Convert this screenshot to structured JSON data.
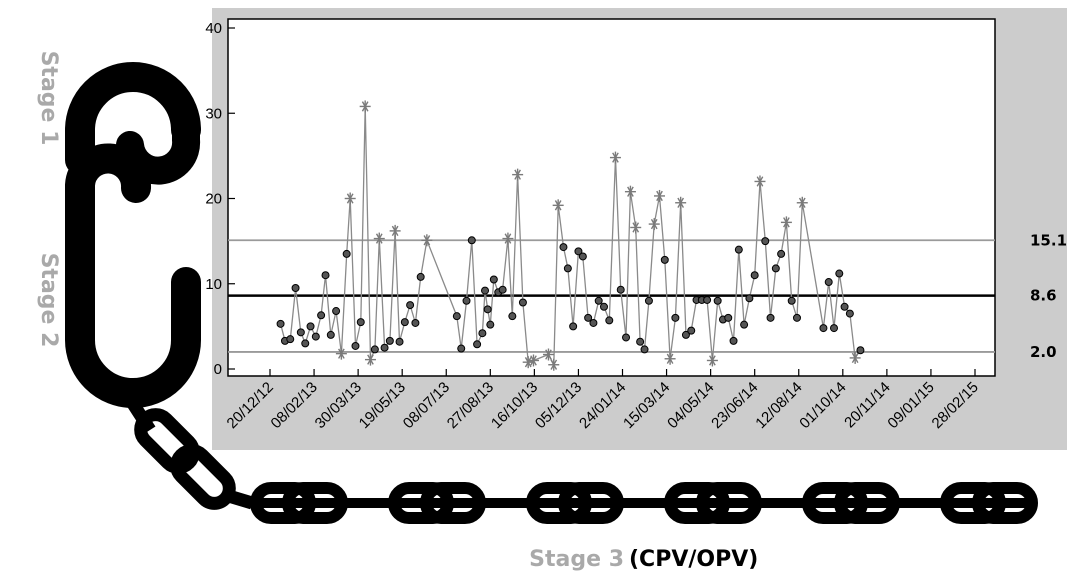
{
  "stages": {
    "stage1": "Stage 1",
    "stage2": "Stage 2",
    "stage3": "Stage 3",
    "stage3_paren": "(CPV/OPV)"
  },
  "colors": {
    "panel": "#cccccc",
    "plot_bg": "#ffffff",
    "series_line": "#8a8a8a",
    "marker_fill": "#555555",
    "mean_line": "#000000",
    "limit_line": "#9a9a9a",
    "chain": "#000000",
    "stage_label": "#a9a9a9"
  },
  "chart_data": {
    "type": "line",
    "title": "",
    "xlabel": "",
    "ylabel": "",
    "ylim": [
      0,
      40
    ],
    "yticks": [
      0,
      10,
      20,
      30,
      40
    ],
    "x_range": [
      "2012-12-20",
      "2015-03-20"
    ],
    "x_tick_labels": [
      "20/12/12",
      "08/02/13",
      "30/03/13",
      "19/05/13",
      "08/07/13",
      "27/08/13",
      "16/10/13",
      "05/12/13",
      "24/01/14",
      "15/03/14",
      "04/05/14",
      "23/06/14",
      "12/08/14",
      "01/10/14",
      "20/11/14",
      "09/01/15",
      "28/02/15"
    ],
    "x_tick_dates": [
      "2012-12-20",
      "2013-02-08",
      "2013-03-30",
      "2013-05-19",
      "2013-07-08",
      "2013-08-27",
      "2013-10-16",
      "2013-12-05",
      "2014-01-24",
      "2014-03-15",
      "2014-05-04",
      "2014-06-23",
      "2014-08-12",
      "2014-10-01",
      "2014-11-20",
      "2015-01-09",
      "2015-02-28"
    ],
    "reference_lines": [
      {
        "value": 15.1,
        "label": "15.1",
        "kind": "upper"
      },
      {
        "value": 8.6,
        "label": "8.6",
        "kind": "mean"
      },
      {
        "value": 2.0,
        "label": "2.0",
        "kind": "lower"
      }
    ],
    "grid": false,
    "legend": "none",
    "series": [
      {
        "points": [
          {
            "x": "2013-01-01",
            "y": 5.3,
            "m": "o"
          },
          {
            "x": "2013-01-06",
            "y": 3.3,
            "m": "o"
          },
          {
            "x": "2013-01-12",
            "y": 3.5,
            "m": "o"
          },
          {
            "x": "2013-01-18",
            "y": 9.5,
            "m": "o"
          },
          {
            "x": "2013-01-24",
            "y": 4.3,
            "m": "o"
          },
          {
            "x": "2013-01-29",
            "y": 3.0,
            "m": "o"
          },
          {
            "x": "2013-02-04",
            "y": 5.0,
            "m": "o"
          },
          {
            "x": "2013-02-10",
            "y": 3.8,
            "m": "o"
          },
          {
            "x": "2013-02-16",
            "y": 6.3,
            "m": "o"
          },
          {
            "x": "2013-02-21",
            "y": 11.0,
            "m": "o"
          },
          {
            "x": "2013-02-27",
            "y": 4.0,
            "m": "o"
          },
          {
            "x": "2013-03-05",
            "y": 6.8,
            "m": "o"
          },
          {
            "x": "2013-03-11",
            "y": 1.8,
            "m": "*"
          },
          {
            "x": "2013-03-17",
            "y": 13.5,
            "m": "o"
          },
          {
            "x": "2013-03-21",
            "y": 20.0,
            "m": "*"
          },
          {
            "x": "2013-03-27",
            "y": 2.7,
            "m": "o"
          },
          {
            "x": "2013-04-02",
            "y": 5.5,
            "m": "o"
          },
          {
            "x": "2013-04-07",
            "y": 30.8,
            "m": "*"
          },
          {
            "x": "2013-04-13",
            "y": 1.1,
            "m": "*"
          },
          {
            "x": "2013-04-18",
            "y": 2.3,
            "m": "o"
          },
          {
            "x": "2013-04-23",
            "y": 15.3,
            "m": "*"
          },
          {
            "x": "2013-04-29",
            "y": 2.5,
            "m": "o"
          },
          {
            "x": "2013-05-05",
            "y": 3.3,
            "m": "o"
          },
          {
            "x": "2013-05-11",
            "y": 16.2,
            "m": "*"
          },
          {
            "x": "2013-05-16",
            "y": 3.2,
            "m": "o"
          },
          {
            "x": "2013-05-22",
            "y": 5.5,
            "m": "o"
          },
          {
            "x": "2013-05-28",
            "y": 7.5,
            "m": "o"
          },
          {
            "x": "2013-06-03",
            "y": 5.4,
            "m": "o"
          },
          {
            "x": "2013-06-09",
            "y": 10.8,
            "m": "o"
          },
          {
            "x": "2013-06-16",
            "y": 15.1,
            "m": "*"
          },
          {
            "x": "2013-07-20",
            "y": 6.2,
            "m": "o"
          },
          {
            "x": "2013-07-25",
            "y": 2.4,
            "m": "o"
          },
          {
            "x": "2013-07-31",
            "y": 8.0,
            "m": "o"
          },
          {
            "x": "2013-08-06",
            "y": 15.1,
            "m": "o"
          },
          {
            "x": "2013-08-12",
            "y": 2.9,
            "m": "o"
          },
          {
            "x": "2013-08-18",
            "y": 4.2,
            "m": "o"
          },
          {
            "x": "2013-08-21",
            "y": 9.2,
            "m": "o"
          },
          {
            "x": "2013-08-24",
            "y": 7.0,
            "m": "o"
          },
          {
            "x": "2013-08-27",
            "y": 5.2,
            "m": "o"
          },
          {
            "x": "2013-08-31",
            "y": 10.5,
            "m": "o"
          },
          {
            "x": "2013-09-05",
            "y": 9.0,
            "m": "o"
          },
          {
            "x": "2013-09-10",
            "y": 9.3,
            "m": "o"
          },
          {
            "x": "2013-09-16",
            "y": 15.3,
            "m": "*"
          },
          {
            "x": "2013-09-21",
            "y": 6.2,
            "m": "o"
          },
          {
            "x": "2013-09-27",
            "y": 22.8,
            "m": "*"
          },
          {
            "x": "2013-10-03",
            "y": 7.8,
            "m": "o"
          },
          {
            "x": "2013-10-09",
            "y": 0.8,
            "m": "*"
          },
          {
            "x": "2013-10-15",
            "y": 1.0,
            "m": "*"
          },
          {
            "x": "2013-11-01",
            "y": 1.7,
            "m": "*"
          },
          {
            "x": "2013-11-07",
            "y": 0.5,
            "m": "*"
          },
          {
            "x": "2013-11-12",
            "y": 19.2,
            "m": "*"
          },
          {
            "x": "2013-11-18",
            "y": 14.3,
            "m": "o"
          },
          {
            "x": "2013-11-23",
            "y": 11.8,
            "m": "o"
          },
          {
            "x": "2013-11-29",
            "y": 5.0,
            "m": "o"
          },
          {
            "x": "2013-12-05",
            "y": 13.8,
            "m": "o"
          },
          {
            "x": "2013-12-10",
            "y": 13.2,
            "m": "o"
          },
          {
            "x": "2013-12-16",
            "y": 6.0,
            "m": "o"
          },
          {
            "x": "2013-12-22",
            "y": 5.4,
            "m": "o"
          },
          {
            "x": "2013-12-28",
            "y": 8.0,
            "m": "o"
          },
          {
            "x": "2014-01-03",
            "y": 7.3,
            "m": "o"
          },
          {
            "x": "2014-01-09",
            "y": 5.7,
            "m": "o"
          },
          {
            "x": "2014-01-16",
            "y": 24.8,
            "m": "*"
          },
          {
            "x": "2014-01-22",
            "y": 9.3,
            "m": "o"
          },
          {
            "x": "2014-01-28",
            "y": 3.7,
            "m": "o"
          },
          {
            "x": "2014-02-02",
            "y": 20.8,
            "m": "*"
          },
          {
            "x": "2014-02-08",
            "y": 16.6,
            "m": "*"
          },
          {
            "x": "2014-02-13",
            "y": 3.2,
            "m": "o"
          },
          {
            "x": "2014-02-18",
            "y": 2.3,
            "m": "o"
          },
          {
            "x": "2014-02-23",
            "y": 8.0,
            "m": "o"
          },
          {
            "x": "2014-03-01",
            "y": 17.0,
            "m": "*"
          },
          {
            "x": "2014-03-07",
            "y": 20.3,
            "m": "*"
          },
          {
            "x": "2014-03-13",
            "y": 12.8,
            "m": "o"
          },
          {
            "x": "2014-03-19",
            "y": 1.2,
            "m": "*"
          },
          {
            "x": "2014-03-25",
            "y": 6.0,
            "m": "o"
          },
          {
            "x": "2014-03-31",
            "y": 19.5,
            "m": "*"
          },
          {
            "x": "2014-04-06",
            "y": 4.0,
            "m": "o"
          },
          {
            "x": "2014-04-12",
            "y": 4.5,
            "m": "o"
          },
          {
            "x": "2014-04-18",
            "y": 8.1,
            "m": "o"
          },
          {
            "x": "2014-04-24",
            "y": 8.1,
            "m": "o"
          },
          {
            "x": "2014-04-30",
            "y": 8.1,
            "m": "o"
          },
          {
            "x": "2014-05-06",
            "y": 1.0,
            "m": "*"
          },
          {
            "x": "2014-05-12",
            "y": 8.0,
            "m": "o"
          },
          {
            "x": "2014-05-18",
            "y": 5.8,
            "m": "o"
          },
          {
            "x": "2014-05-24",
            "y": 6.0,
            "m": "o"
          },
          {
            "x": "2014-05-30",
            "y": 3.3,
            "m": "o"
          },
          {
            "x": "2014-06-05",
            "y": 14.0,
            "m": "o"
          },
          {
            "x": "2014-06-11",
            "y": 5.2,
            "m": "o"
          },
          {
            "x": "2014-06-17",
            "y": 8.3,
            "m": "o"
          },
          {
            "x": "2014-06-23",
            "y": 11.0,
            "m": "o"
          },
          {
            "x": "2014-06-29",
            "y": 22.0,
            "m": "*"
          },
          {
            "x": "2014-07-05",
            "y": 15.0,
            "m": "o"
          },
          {
            "x": "2014-07-11",
            "y": 6.0,
            "m": "o"
          },
          {
            "x": "2014-07-17",
            "y": 11.8,
            "m": "o"
          },
          {
            "x": "2014-07-23",
            "y": 13.5,
            "m": "o"
          },
          {
            "x": "2014-07-29",
            "y": 17.2,
            "m": "*"
          },
          {
            "x": "2014-08-04",
            "y": 8.0,
            "m": "o"
          },
          {
            "x": "2014-08-10",
            "y": 6.0,
            "m": "o"
          },
          {
            "x": "2014-08-16",
            "y": 19.5,
            "m": "*"
          },
          {
            "x": "2014-09-09",
            "y": 4.8,
            "m": "o"
          },
          {
            "x": "2014-09-15",
            "y": 10.2,
            "m": "o"
          },
          {
            "x": "2014-09-21",
            "y": 4.8,
            "m": "o"
          },
          {
            "x": "2014-09-27",
            "y": 11.2,
            "m": "o"
          },
          {
            "x": "2014-10-03",
            "y": 7.3,
            "m": "o"
          },
          {
            "x": "2014-10-09",
            "y": 6.5,
            "m": "o"
          },
          {
            "x": "2014-10-15",
            "y": 1.3,
            "m": "*"
          },
          {
            "x": "2014-10-21",
            "y": 2.2,
            "m": "o"
          }
        ]
      }
    ]
  }
}
